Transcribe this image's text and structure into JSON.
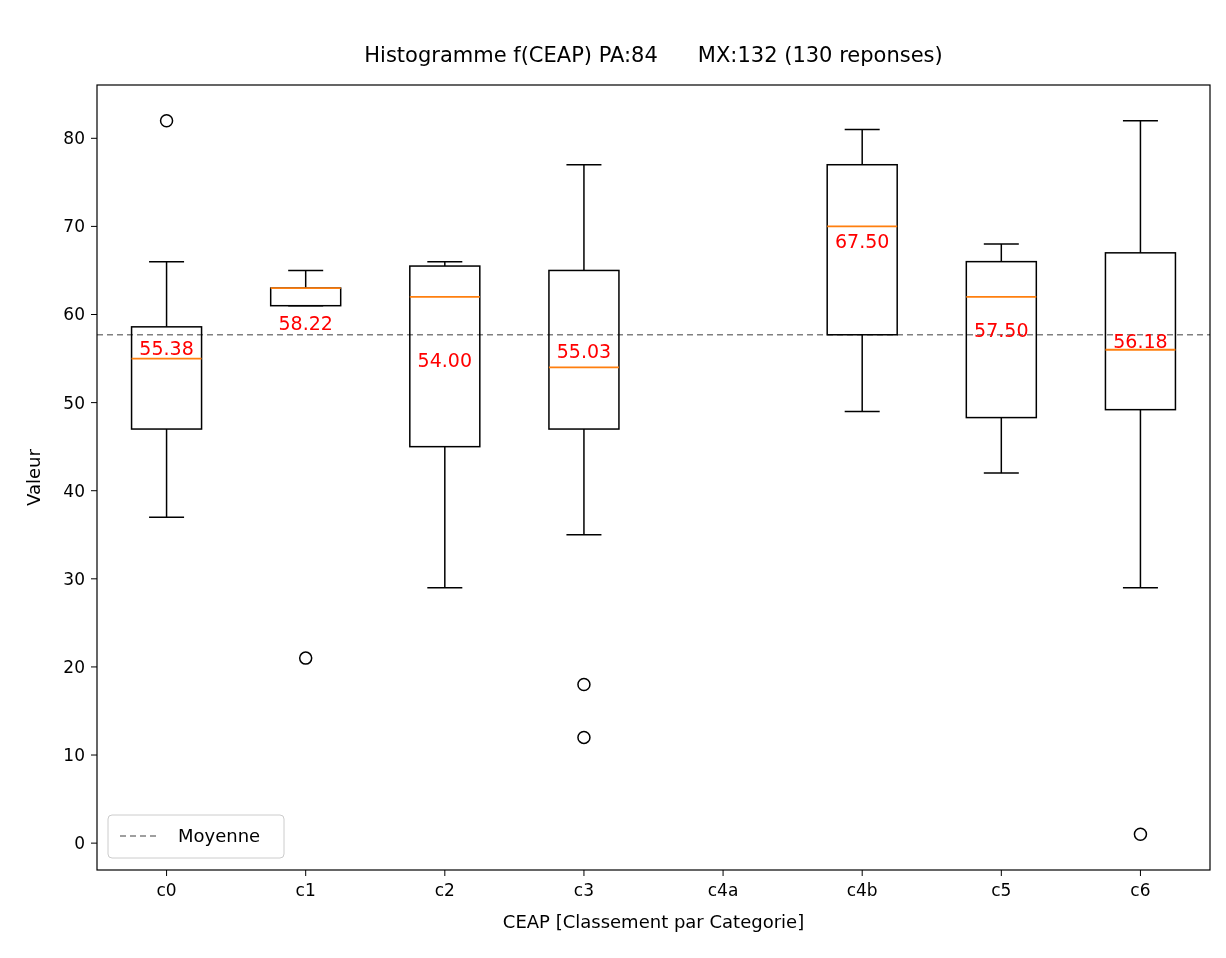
{
  "chart_data": {
    "type": "box",
    "title": "Histogramme f(CEAP) PA:84      MX:132 (130 reponses)",
    "xlabel": "CEAP [Classement par Categorie]",
    "ylabel": "Valeur",
    "categories": [
      "c0",
      "c1",
      "c2",
      "c3",
      "c4a",
      "c4b",
      "c5",
      "c6"
    ],
    "color": "#000000",
    "boxes": [
      {
        "low": 37,
        "q1": 47,
        "median": 55,
        "q3": 58.6,
        "high": 66,
        "outliers": [
          82
        ]
      },
      {
        "low": 61,
        "q1": 61,
        "median": 63,
        "q3": 63,
        "high": 65,
        "outliers": [
          21
        ]
      },
      {
        "low": 29,
        "q1": 45,
        "median": 62,
        "q3": 65.5,
        "high": 66
      },
      {
        "low": 35,
        "q1": 47,
        "median": 54,
        "q3": 65,
        "high": 77,
        "outliers": [
          18,
          12
        ]
      },
      null,
      {
        "low": 49,
        "q1": 57.7,
        "median": 70,
        "q3": 77,
        "high": 81
      },
      {
        "low": 42,
        "q1": 48.3,
        "median": 62,
        "q3": 66,
        "high": 68
      },
      {
        "low": 29,
        "q1": 49.2,
        "median": 56,
        "q3": 67,
        "high": 82,
        "outliers": [
          1
        ]
      }
    ],
    "value_labels": [
      "55.38",
      "58.22",
      "54.00",
      "55.03",
      null,
      "67.50",
      "57.50",
      "56.18"
    ],
    "ref_lines": [
      {
        "axis": "y",
        "value": 57.7,
        "label": "Moyenne",
        "color": "#808080",
        "line_style": "dashed"
      }
    ],
    "ylim": [
      -3.05,
      86.05
    ],
    "yticks": [
      0,
      10,
      20,
      30,
      40,
      50,
      60,
      70,
      80
    ],
    "grid": false,
    "legend": "bottom left"
  }
}
